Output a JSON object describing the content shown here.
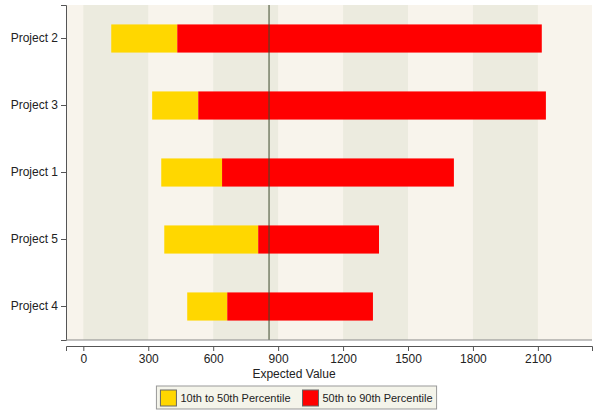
{
  "chart_data": {
    "type": "bar",
    "orientation": "horizontal",
    "x_label": "Expected Value",
    "categories": [
      "Project 2",
      "Project 3",
      "Project 1",
      "Project 5",
      "Project 4"
    ],
    "series": [
      {
        "name": "10th to 50th Percentile",
        "color": "#ffd700",
        "values": [
          [
            129,
            434
          ],
          [
            318,
            531
          ],
          [
            360,
            641
          ],
          [
            374,
            808
          ],
          [
            480,
            665
          ]
        ]
      },
      {
        "name": "50th to 90th Percentile",
        "color": "#ff0000",
        "values": [
          [
            434,
            2118
          ],
          [
            531,
            2137
          ],
          [
            641,
            1712
          ],
          [
            808,
            1366
          ],
          [
            665,
            1338
          ]
        ]
      }
    ],
    "reference_line": 858,
    "xlim": [
      -80,
      2350
    ],
    "xticks": [
      0,
      300,
      600,
      900,
      1200,
      1500,
      1800,
      2100
    ],
    "legend": "bottom"
  }
}
